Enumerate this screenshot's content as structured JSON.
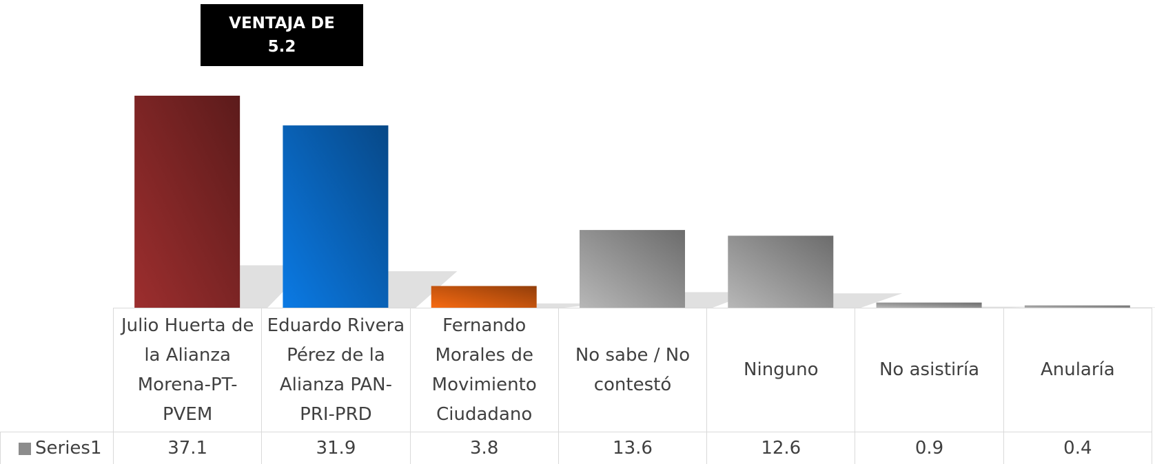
{
  "chart_data": {
    "type": "bar",
    "annotation": "VENTAJA DE 5.2",
    "categories": [
      "Julio Huerta de la Alianza Morena-PT-PVEM",
      "Eduardo Rivera Pérez de la Alianza PAN-PRI-PRD",
      "Fernando Morales de Movimiento Ciudadano",
      "No sabe / No contestó",
      "Ninguno",
      "No asistiría",
      "Anularía"
    ],
    "series": [
      {
        "name": "Series1",
        "color": "#8c8c8c",
        "values": [
          37.1,
          31.9,
          3.8,
          13.6,
          12.6,
          0.9,
          0.4
        ]
      }
    ],
    "colors": [
      "#8e2a2a",
      "#0a6fcf",
      "#e06010",
      "#a6a6a6",
      "#a6a6a6",
      "#a6a6a6",
      "#a6a6a6"
    ],
    "annotation_color": "#000000"
  }
}
